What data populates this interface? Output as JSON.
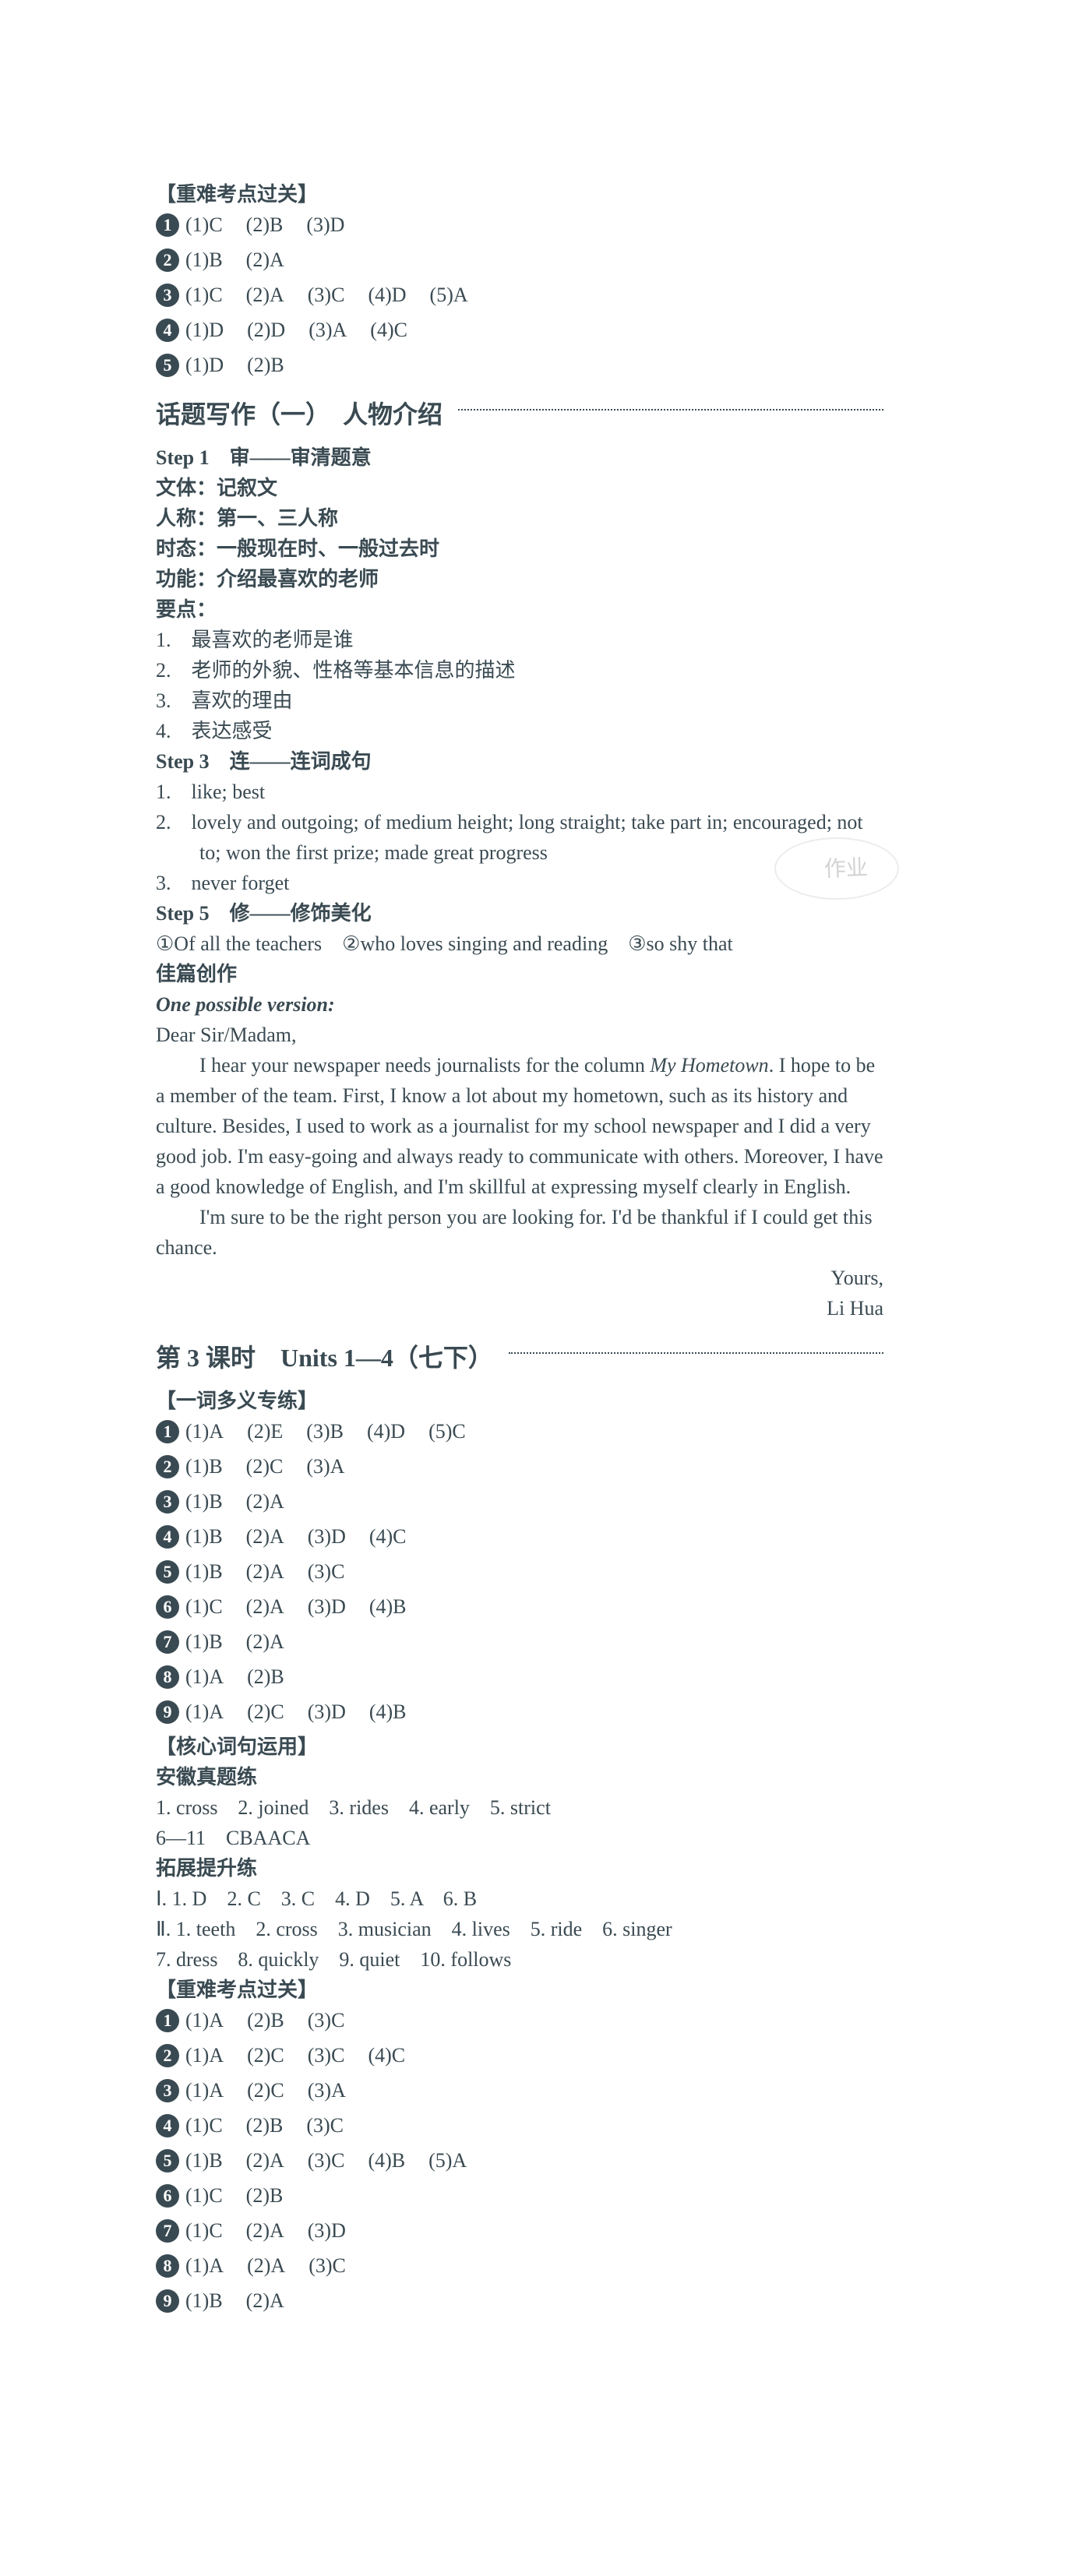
{
  "section1": {
    "title": "【重难考点过关】",
    "rows": [
      {
        "num": "1",
        "items": [
          "(1)C",
          "(2)B",
          "(3)D"
        ]
      },
      {
        "num": "2",
        "items": [
          "(1)B",
          "(2)A"
        ]
      },
      {
        "num": "3",
        "items": [
          "(1)C",
          "(2)A",
          "(3)C",
          "(4)D",
          "(5)A"
        ]
      },
      {
        "num": "4",
        "items": [
          "(1)D",
          "(2)D",
          "(3)A",
          "(4)C"
        ]
      },
      {
        "num": "5",
        "items": [
          "(1)D",
          "(2)B"
        ]
      }
    ]
  },
  "topic1": {
    "title": "话题写作（一）　人物介绍",
    "step1_label": "Step 1　审——审清题意",
    "wenti": "文体：记叙文",
    "rencheng": "人称：第一、三人称",
    "shitai": "时态：一般现在时、一般过去时",
    "gongneng": "功能：介绍最喜欢的老师",
    "yaodian_label": "要点：",
    "yaodian": [
      "1.　最喜欢的老师是谁",
      "2.　老师的外貌、性格等基本信息的描述",
      "3.　喜欢的理由",
      "4.　表达感受"
    ],
    "step3_label": "Step 3　连——连词成句",
    "step3_items": [
      "1.　like; best",
      "2.　lovely and outgoing; of medium height; long straight; take part in; encouraged; not to; won the first prize; made great progress",
      "3.　never forget"
    ],
    "step5_label": "Step 5　修——修饰美化",
    "step5_line": "①Of all the teachers　②who loves singing and reading　③so shy that",
    "jiapian_label": "佳篇创作",
    "version_label": "One possible version:",
    "salutation": "Dear Sir/Madam,",
    "para1_a": "I hear your newspaper needs journalists for the column ",
    "para1_italic": "My Hometown",
    "para1_b": ". I hope to be a member of the team. First, I know a lot about my hometown, such as its history and culture. Besides, I used to work as a journalist for my school newspaper and I did a very good job. I'm easy-going and always ready to communicate with others. Moreover, I have a good knowledge of English, and I'm skillful at expressing myself clearly in English.",
    "para2": "I'm sure to be the right person you are looking for. I'd be thankful if I could get this chance.",
    "closing1": "Yours,",
    "closing2": "Li Hua"
  },
  "lesson3": {
    "title": "第 3 课时　Units 1—4（七下）",
    "sec1_title": "【一词多义专练】",
    "sec1_rows": [
      {
        "num": "1",
        "items": [
          "(1)A",
          "(2)E",
          "(3)B",
          "(4)D",
          "(5)C"
        ]
      },
      {
        "num": "2",
        "items": [
          "(1)B",
          "(2)C",
          "(3)A"
        ]
      },
      {
        "num": "3",
        "items": [
          "(1)B",
          "(2)A"
        ]
      },
      {
        "num": "4",
        "items": [
          "(1)B",
          "(2)A",
          "(3)D",
          "(4)C"
        ]
      },
      {
        "num": "5",
        "items": [
          "(1)B",
          "(2)A",
          "(3)C"
        ]
      },
      {
        "num": "6",
        "items": [
          "(1)C",
          "(2)A",
          "(3)D",
          "(4)B"
        ]
      },
      {
        "num": "7",
        "items": [
          "(1)B",
          "(2)A"
        ]
      },
      {
        "num": "8",
        "items": [
          "(1)A",
          "(2)B"
        ]
      },
      {
        "num": "9",
        "items": [
          "(1)A",
          "(2)C",
          "(3)D",
          "(4)B"
        ]
      }
    ],
    "sec2_title": "【核心词句运用】",
    "anhui_label": "安徽真题练",
    "anhui_line1": "1. cross　2. joined　3. rides　4. early　5. strict",
    "anhui_line2": "6—11　CBAACA",
    "tuozhan_label": "拓展提升练",
    "tuozhan_line1": "Ⅰ. 1. D　2. C　3. C　4. D　5. A　6. B",
    "tuozhan_line2": "Ⅱ. 1. teeth　2. cross　3. musician　4. lives　5. ride　6. singer",
    "tuozhan_line3": "7. dress　8. quickly　9. quiet　10. follows",
    "sec3_title": "【重难考点过关】",
    "sec3_rows": [
      {
        "num": "1",
        "items": [
          "(1)A",
          "(2)B",
          "(3)C"
        ]
      },
      {
        "num": "2",
        "items": [
          "(1)A",
          "(2)C",
          "(3)C",
          "(4)C"
        ]
      },
      {
        "num": "3",
        "items": [
          "(1)A",
          "(2)C",
          "(3)A"
        ]
      },
      {
        "num": "4",
        "items": [
          "(1)C",
          "(2)B",
          "(3)C"
        ]
      },
      {
        "num": "5",
        "items": [
          "(1)B",
          "(2)A",
          "(3)C",
          "(4)B",
          "(5)A"
        ]
      },
      {
        "num": "6",
        "items": [
          "(1)C",
          "(2)B"
        ]
      },
      {
        "num": "7",
        "items": [
          "(1)C",
          "(2)A",
          "(3)D"
        ]
      },
      {
        "num": "8",
        "items": [
          "(1)A",
          "(2)A",
          "(3)C"
        ]
      },
      {
        "num": "9",
        "items": [
          "(1)B",
          "(2)A"
        ]
      }
    ]
  },
  "watermark_text": "作业"
}
